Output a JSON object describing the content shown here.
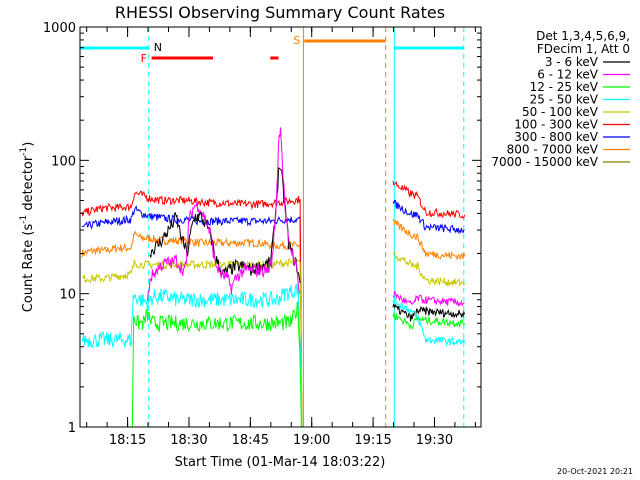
{
  "chart_data": {
    "type": "line",
    "title": "RHESSI Observing Summary Count Rates",
    "xlabel": "Start Time (01-Mar-14 18:03:22)",
    "ylabel": "Count Rate (s⁻¹ detector⁻¹)",
    "ylabel_main": "Count Rate (s",
    "ylabel_mid": " detector",
    "ylabel_end": ")",
    "ylabel_sup": "-1",
    "yscale": "log",
    "ylim": [
      1,
      1000
    ],
    "xlim_minutes": [
      0,
      98
    ],
    "x_ticks": [
      {
        "t": 11.63,
        "label": "18:15"
      },
      {
        "t": 26.63,
        "label": "18:30"
      },
      {
        "t": 41.63,
        "label": "18:45"
      },
      {
        "t": 56.63,
        "label": "19:00"
      },
      {
        "t": 71.63,
        "label": "19:15"
      },
      {
        "t": 86.63,
        "label": "19:30"
      }
    ],
    "y_ticks": [
      {
        "v": 1,
        "label": "1"
      },
      {
        "v": 10,
        "label": "10"
      },
      {
        "v": 100,
        "label": "100"
      },
      {
        "v": 1000,
        "label": "1000"
      }
    ],
    "legend_header": [
      "Det 1,3,4,5,6,9,",
      "FDecim 1, Att 0"
    ],
    "series": [
      {
        "name": "3 - 6 keV",
        "color": "#000000",
        "points": [
          [
            17.1,
            20.5
          ],
          [
            19.5,
            24
          ],
          [
            21,
            28
          ],
          [
            22.5,
            33
          ],
          [
            23.5,
            38
          ],
          [
            24.3,
            30
          ],
          [
            25.2,
            24
          ],
          [
            26.3,
            20
          ],
          [
            27,
            28
          ],
          [
            27.5,
            33
          ],
          [
            28.2,
            38
          ],
          [
            29.5,
            38
          ],
          [
            31,
            32
          ],
          [
            32,
            27
          ],
          [
            33,
            19
          ],
          [
            34,
            16
          ],
          [
            35,
            14
          ],
          [
            36.5,
            15
          ],
          [
            38,
            16
          ],
          [
            40,
            16
          ],
          [
            42,
            15
          ],
          [
            44,
            16
          ],
          [
            46.5,
            17
          ],
          [
            47.2,
            25
          ],
          [
            48,
            48
          ],
          [
            48.7,
            95
          ],
          [
            49.3,
            75
          ],
          [
            50.2,
            42
          ],
          [
            51,
            24
          ],
          [
            52,
            19
          ],
          [
            53,
            16
          ],
          [
            53.8,
            12
          ]
        ]
      },
      {
        "name": "6 - 12 keV",
        "color": "#ff00ff",
        "points": [
          [
            16.5,
            8.5
          ],
          [
            17.1,
            13
          ],
          [
            19.5,
            16
          ],
          [
            21,
            17
          ],
          [
            22.5,
            17
          ],
          [
            23.5,
            18
          ],
          [
            24.5,
            16
          ],
          [
            25.3,
            15
          ],
          [
            26,
            16
          ],
          [
            26.5,
            33
          ],
          [
            27.2,
            40
          ],
          [
            28,
            46
          ],
          [
            29,
            46
          ],
          [
            30,
            40
          ],
          [
            31,
            34
          ],
          [
            32,
            27
          ],
          [
            33,
            17
          ],
          [
            34.5,
            14
          ],
          [
            36,
            13
          ],
          [
            37,
            11
          ],
          [
            38,
            13
          ],
          [
            40,
            15
          ],
          [
            42,
            15
          ],
          [
            44,
            15
          ],
          [
            46,
            15
          ],
          [
            47,
            18
          ],
          [
            48,
            50
          ],
          [
            48.5,
            130
          ],
          [
            49,
            190
          ],
          [
            49.6,
            80
          ],
          [
            50.3,
            36
          ],
          [
            51,
            24
          ],
          [
            52,
            20
          ],
          [
            53,
            15
          ],
          [
            53.8,
            10
          ]
        ]
      },
      {
        "name": "12 - 25 keV",
        "color": "#00ff00",
        "points": [
          [
            12.8,
            1.0
          ],
          [
            13.1,
            7
          ],
          [
            14,
            6
          ],
          [
            15.5,
            6
          ],
          [
            16.5,
            7
          ],
          [
            17.5,
            6
          ],
          [
            19,
            6
          ],
          [
            22,
            6
          ],
          [
            25,
            6
          ],
          [
            28,
            6
          ],
          [
            31,
            6
          ],
          [
            34,
            6
          ],
          [
            37,
            6
          ],
          [
            40,
            6
          ],
          [
            43,
            6
          ],
          [
            46,
            6
          ],
          [
            48,
            6
          ],
          [
            50,
            6
          ],
          [
            51.5,
            6
          ],
          [
            52.5,
            7
          ],
          [
            53.3,
            8
          ],
          [
            53.8,
            3
          ],
          [
            54.1,
            1.0
          ]
        ]
      },
      {
        "name": "25 - 50 keV",
        "color": "#00ffff",
        "points": [
          [
            0.5,
            4.5
          ],
          [
            3,
            4.5
          ],
          [
            6,
            4.5
          ],
          [
            9,
            4.5
          ],
          [
            12.5,
            4.5
          ],
          [
            13,
            9.5
          ],
          [
            15,
            9
          ],
          [
            16.5,
            8.5
          ],
          [
            18,
            9.5
          ],
          [
            21,
            9.5
          ],
          [
            24,
            9
          ],
          [
            27,
            9
          ],
          [
            30,
            9
          ],
          [
            33,
            9
          ],
          [
            36,
            9
          ],
          [
            39,
            9
          ],
          [
            42,
            9
          ],
          [
            45,
            9
          ],
          [
            48,
            9
          ],
          [
            50,
            10
          ],
          [
            52,
            10.5
          ],
          [
            53.3,
            11
          ],
          [
            53.9,
            3.5
          ],
          [
            54.2,
            1.0
          ]
        ]
      },
      {
        "name": "50 - 100 keV",
        "color": "#c8c800",
        "points": [
          [
            0.5,
            13
          ],
          [
            3,
            13
          ],
          [
            6,
            13
          ],
          [
            9,
            13.5
          ],
          [
            12.5,
            14
          ],
          [
            13.3,
            17
          ],
          [
            15,
            16.5
          ],
          [
            17,
            16.5
          ],
          [
            20,
            16.5
          ],
          [
            23,
            16.5
          ],
          [
            26,
            16.5
          ],
          [
            29,
            16.5
          ],
          [
            32,
            16.5
          ],
          [
            35,
            16.5
          ],
          [
            38,
            16.5
          ],
          [
            41,
            16.5
          ],
          [
            44,
            16.5
          ],
          [
            47,
            16.5
          ],
          [
            50,
            17
          ],
          [
            52,
            17
          ],
          [
            53.8,
            17
          ],
          [
            54.3,
            1.0
          ]
        ]
      },
      {
        "name": "100 - 300 keV",
        "color": "#ff0000",
        "points": [
          [
            0.5,
            40
          ],
          [
            3,
            42
          ],
          [
            6,
            44
          ],
          [
            9,
            44
          ],
          [
            12.5,
            45
          ],
          [
            13.3,
            57
          ],
          [
            15,
            55
          ],
          [
            17,
            52
          ],
          [
            20,
            50
          ],
          [
            23,
            50
          ],
          [
            26,
            50
          ],
          [
            29,
            49
          ],
          [
            32,
            48
          ],
          [
            35,
            48
          ],
          [
            38,
            47
          ],
          [
            41,
            47
          ],
          [
            44,
            47
          ],
          [
            47,
            48
          ],
          [
            50,
            49
          ],
          [
            52,
            50
          ],
          [
            53.8,
            51
          ],
          [
            54.2,
            1.0
          ]
        ]
      },
      {
        "name": "300 - 800 keV",
        "color": "#0000ff",
        "points": [
          [
            0.5,
            31
          ],
          [
            3,
            33
          ],
          [
            6,
            34
          ],
          [
            9,
            35
          ],
          [
            12.5,
            36
          ],
          [
            13.3,
            43
          ],
          [
            15,
            40
          ],
          [
            17,
            38
          ],
          [
            20,
            37
          ],
          [
            23,
            36
          ],
          [
            26,
            36
          ],
          [
            29,
            35
          ],
          [
            32,
            35
          ],
          [
            35,
            35
          ],
          [
            38,
            35
          ],
          [
            41,
            35
          ],
          [
            44,
            35
          ],
          [
            47,
            35
          ],
          [
            50,
            36
          ],
          [
            52,
            36
          ],
          [
            53.8,
            36
          ],
          [
            54.2,
            1.0
          ]
        ]
      },
      {
        "name": "800 - 7000 keV",
        "color": "#ff8000",
        "points": [
          [
            0.5,
            20
          ],
          [
            3,
            21
          ],
          [
            6,
            21
          ],
          [
            9,
            22
          ],
          [
            12.5,
            22
          ],
          [
            13.3,
            28
          ],
          [
            15,
            26
          ],
          [
            17,
            26
          ],
          [
            20,
            25
          ],
          [
            23,
            25
          ],
          [
            26,
            25
          ],
          [
            29,
            24
          ],
          [
            32,
            24
          ],
          [
            35,
            24
          ],
          [
            38,
            24
          ],
          [
            41,
            24
          ],
          [
            44,
            24
          ],
          [
            47,
            23
          ],
          [
            50,
            23
          ],
          [
            52,
            23
          ],
          [
            53.8,
            23
          ],
          [
            54.2,
            1.0
          ]
        ]
      },
      {
        "name": "7000 - 15000 keV",
        "color": "#808000",
        "points": []
      }
    ],
    "segment_after_gap": {
      "start": 76.5,
      "end": 94,
      "levels": [
        {
          "series": "100 - 300 keV",
          "start": 68,
          "end": 39
        },
        {
          "series": "300 - 800 keV",
          "start": 48,
          "end": 30
        },
        {
          "series": "800 - 7000 keV",
          "start": 34,
          "end": 19
        },
        {
          "series": "50 - 100 keV",
          "start": 20,
          "end": 12
        },
        {
          "series": "6 - 12 keV",
          "start": 10,
          "end": 8.5
        },
        {
          "series": "3 - 6 keV",
          "start": 8,
          "end": 7
        },
        {
          "series": "12 - 25 keV",
          "start": 7,
          "end": 6
        },
        {
          "series": "25 - 50 keV",
          "start": 9,
          "end": 4.3
        }
      ]
    },
    "flags": {
      "N_label": "N",
      "F_label": "F",
      "S_label": "S",
      "night_intervals": [
        [
          0,
          16.8
        ],
        [
          76.8,
          93.8
        ]
      ],
      "flare_intervals": [
        [
          17.5,
          32.5
        ],
        [
          46.5,
          48.5
        ]
      ],
      "saa_interval": [
        54.8,
        74.7
      ]
    },
    "vlines": [
      {
        "t": 16.8,
        "color": "#00ffff",
        "style": "dashed"
      },
      {
        "t": 54.6,
        "color": "#ff8000",
        "style": "solid"
      },
      {
        "t": 74.7,
        "color": "#ff8000",
        "style": "dashed"
      },
      {
        "t": 76.8,
        "color": "#00ffff",
        "style": "solid"
      },
      {
        "t": 93.8,
        "color": "#00ffff",
        "style": "dashed"
      }
    ]
  },
  "footer": {
    "timestamp": "20-Oct-2021 20:21"
  }
}
